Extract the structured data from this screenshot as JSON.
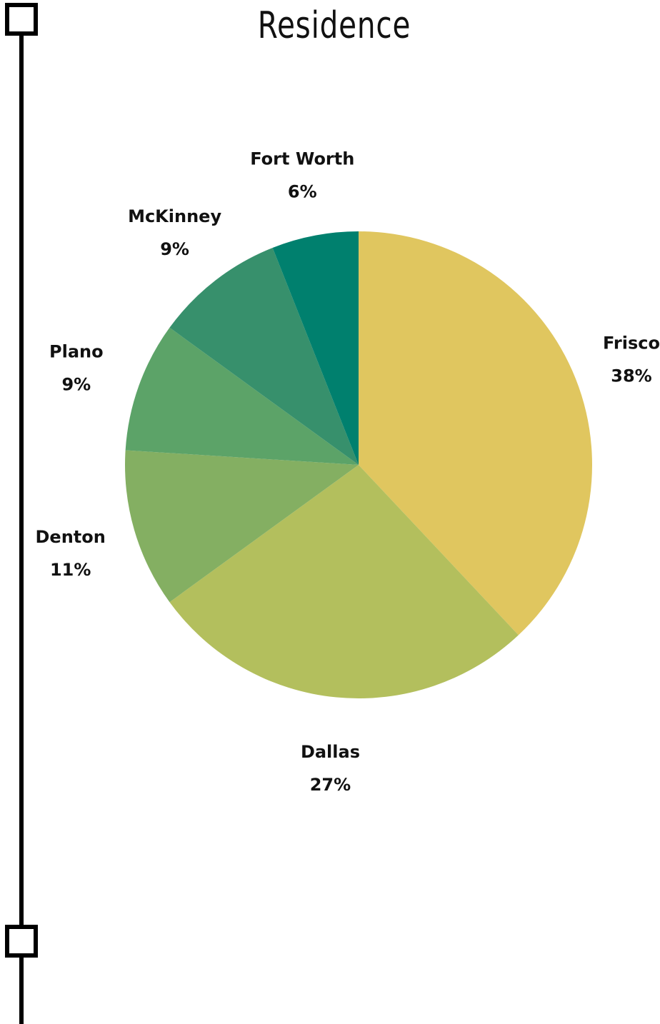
{
  "chart_data": {
    "type": "pie",
    "title": "Residence",
    "slices": [
      {
        "label": "Frisco",
        "value": 38,
        "value_label": "38%",
        "color": "#E0C65F"
      },
      {
        "label": "Dallas",
        "value": 27,
        "value_label": "27%",
        "color": "#B3BF5D"
      },
      {
        "label": "Denton",
        "value": 11,
        "value_label": "11%",
        "color": "#84AF62"
      },
      {
        "label": "Plano",
        "value": 9,
        "value_label": "9%",
        "color": "#5CA368"
      },
      {
        "label": "McKinney",
        "value": 9,
        "value_label": "9%",
        "color": "#37906C"
      },
      {
        "label": "Fort Worth",
        "value": 6,
        "value_label": "6%",
        "color": "#00806E"
      }
    ],
    "start_angle_deg": 0,
    "direction": "clockwise",
    "legend": "none"
  }
}
